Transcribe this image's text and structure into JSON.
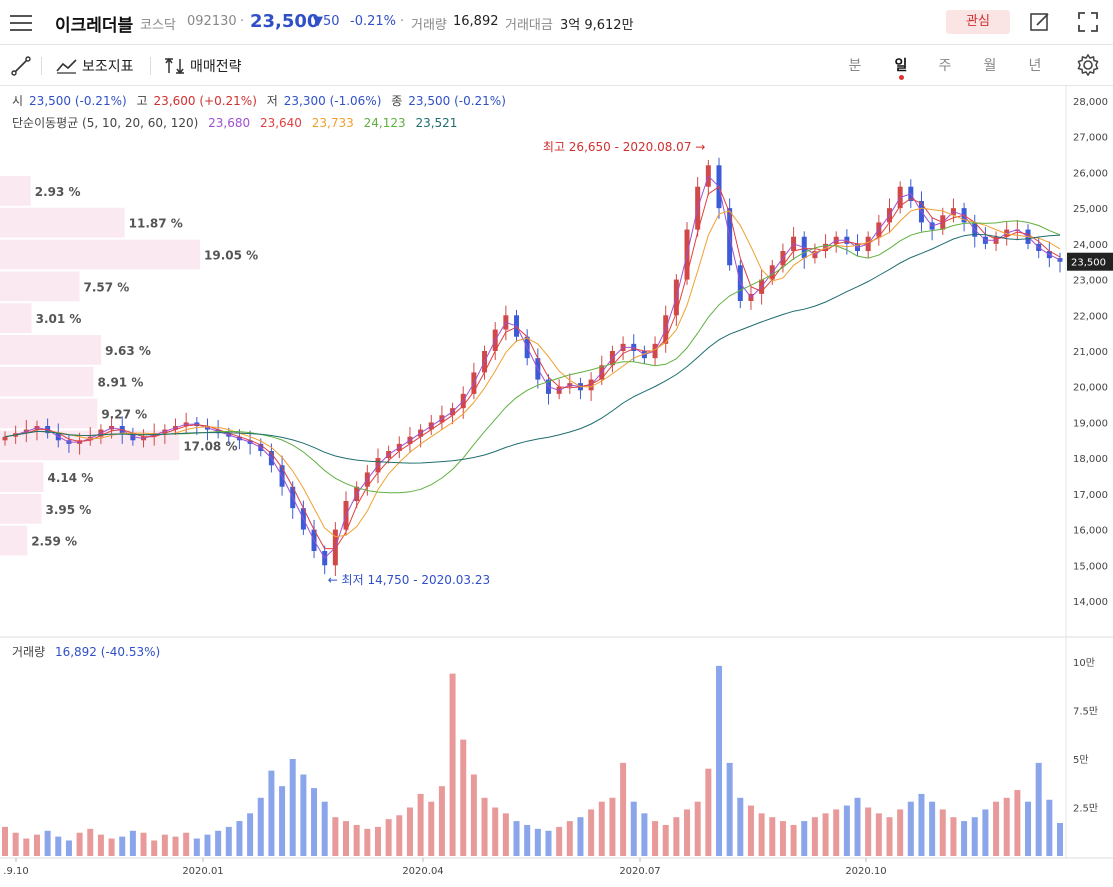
{
  "header": {
    "title": "이크레더블",
    "market": "코스닥",
    "code": "092130",
    "price": "23,500",
    "change": "▼50",
    "change_pct": "-0.21%",
    "volume_label": "거래량",
    "volume": "16,892",
    "amount_label": "거래대금",
    "amount": "3억 9,612만",
    "favorite_label": "관심",
    "icons": [
      "menu-icon",
      "edit-icon",
      "fullscreen-icon"
    ]
  },
  "toolbar": {
    "draw_label": "",
    "indicator_label": "보조지표",
    "strategy_label": "매매전략",
    "periods": [
      "분",
      "일",
      "주",
      "월",
      "년"
    ],
    "active_period": "일"
  },
  "legend": {
    "ohlc": [
      {
        "label": "시",
        "value": "23,500 (-0.21%)",
        "color": "#3050c8"
      },
      {
        "label": "고",
        "value": "23,600 (+0.21%)",
        "color": "#d03030"
      },
      {
        "label": "저",
        "value": "23,300 (-1.06%)",
        "color": "#3050c8"
      },
      {
        "label": "종",
        "value": "23,500 (-0.21%)",
        "color": "#3050c8"
      }
    ],
    "ma_label": "단순이동평균 (5, 10, 20, 60, 120)",
    "ma_values": [
      {
        "value": "23,680",
        "color": "#a050d0"
      },
      {
        "value": "23,640",
        "color": "#e04040"
      },
      {
        "value": "23,733",
        "color": "#f0a030"
      },
      {
        "value": "24,123",
        "color": "#60b040"
      },
      {
        "value": "23,521",
        "color": "#1f6e6e"
      }
    ]
  },
  "volume_legend": {
    "label": "거래량",
    "value": "16,892 (-40.53%)"
  },
  "chart_data": {
    "type": "candlestick",
    "price_axis": [
      "28,000",
      "27,000",
      "26,000",
      "25,000",
      "24,000",
      "23,000",
      "22,000",
      "21,000",
      "20,000",
      "19,000",
      "18,000",
      "17,000",
      "16,000",
      "15,000",
      "14,000"
    ],
    "current_price_tag": "23,500",
    "volume_axis": [
      "10만",
      "7.5만",
      "5만",
      "2.5만"
    ],
    "x_labels": [
      ".9.10",
      "2020.01",
      "2020.04",
      "2020.07",
      "2020.10"
    ],
    "high_annotation": "최고 26,650 - 2020.08.07 →",
    "low_annotation": "← 최저 14,750 - 2020.03.23",
    "volume_profile": [
      {
        "label": "2.93 %",
        "pct": 2.93
      },
      {
        "label": "11.87 %",
        "pct": 11.87
      },
      {
        "label": "19.05 %",
        "pct": 19.05
      },
      {
        "label": "7.57 %",
        "pct": 7.57
      },
      {
        "label": "3.01 %",
        "pct": 3.01
      },
      {
        "label": "9.63 %",
        "pct": 9.63
      },
      {
        "label": "8.91 %",
        "pct": 8.91
      },
      {
        "label": "9.27 %",
        "pct": 9.27
      },
      {
        "label": "17.08 %",
        "pct": 17.08
      },
      {
        "label": "4.14 %",
        "pct": 4.14
      },
      {
        "label": "3.95 %",
        "pct": 3.95
      },
      {
        "label": "2.59 %",
        "pct": 2.59
      }
    ],
    "close_series": [
      18600,
      18700,
      18800,
      18900,
      18700,
      18500,
      18400,
      18500,
      18600,
      18800,
      18900,
      18700,
      18500,
      18600,
      18700,
      18800,
      18900,
      19000,
      18900,
      18800,
      18700,
      18600,
      18500,
      18400,
      18200,
      17800,
      17200,
      16600,
      16000,
      15400,
      15000,
      16000,
      16800,
      17200,
      17600,
      18000,
      18200,
      18400,
      18600,
      18800,
      19000,
      19200,
      19400,
      19800,
      20400,
      21000,
      21600,
      22000,
      21400,
      20800,
      20200,
      19800,
      20000,
      20100,
      19900,
      20200,
      20600,
      21000,
      21200,
      21000,
      20800,
      21200,
      22000,
      23000,
      24400,
      25600,
      26200,
      25000,
      23400,
      22400,
      22600,
      23000,
      23400,
      23800,
      24200,
      23600,
      23800,
      24000,
      24200,
      24000,
      23800,
      24200,
      24600,
      25000,
      25600,
      25200,
      24600,
      24400,
      24800,
      25000,
      24600,
      24200,
      24000,
      24200,
      24400,
      24400,
      24000,
      23800,
      23600,
      23500
    ],
    "volume_series": [
      1.5,
      1.2,
      0.9,
      1.1,
      1.3,
      1.0,
      0.8,
      1.2,
      1.4,
      1.1,
      0.9,
      1.0,
      1.3,
      1.2,
      0.8,
      1.1,
      1.0,
      1.2,
      0.9,
      1.1,
      1.3,
      1.5,
      1.8,
      2.2,
      3.0,
      4.4,
      3.6,
      5.0,
      4.2,
      3.5,
      2.8,
      2.0,
      1.8,
      1.6,
      1.4,
      1.5,
      1.9,
      2.1,
      2.5,
      3.2,
      2.8,
      3.6,
      9.4,
      6.0,
      4.2,
      3.0,
      2.5,
      2.2,
      1.8,
      1.6,
      1.4,
      1.3,
      1.5,
      1.8,
      2.0,
      2.4,
      2.8,
      3.0,
      4.8,
      2.8,
      2.2,
      1.8,
      1.6,
      2.0,
      2.4,
      2.8,
      4.5,
      9.8,
      4.8,
      3.0,
      2.6,
      2.2,
      2.0,
      1.8,
      1.6,
      1.8,
      2.0,
      2.2,
      2.4,
      2.6,
      3.0,
      2.5,
      2.2,
      2.0,
      2.4,
      2.8,
      3.2,
      2.8,
      2.4,
      2.0,
      1.8,
      2.0,
      2.4,
      2.8,
      3.0,
      3.4,
      2.8,
      4.8,
      2.9,
      1.7
    ]
  }
}
